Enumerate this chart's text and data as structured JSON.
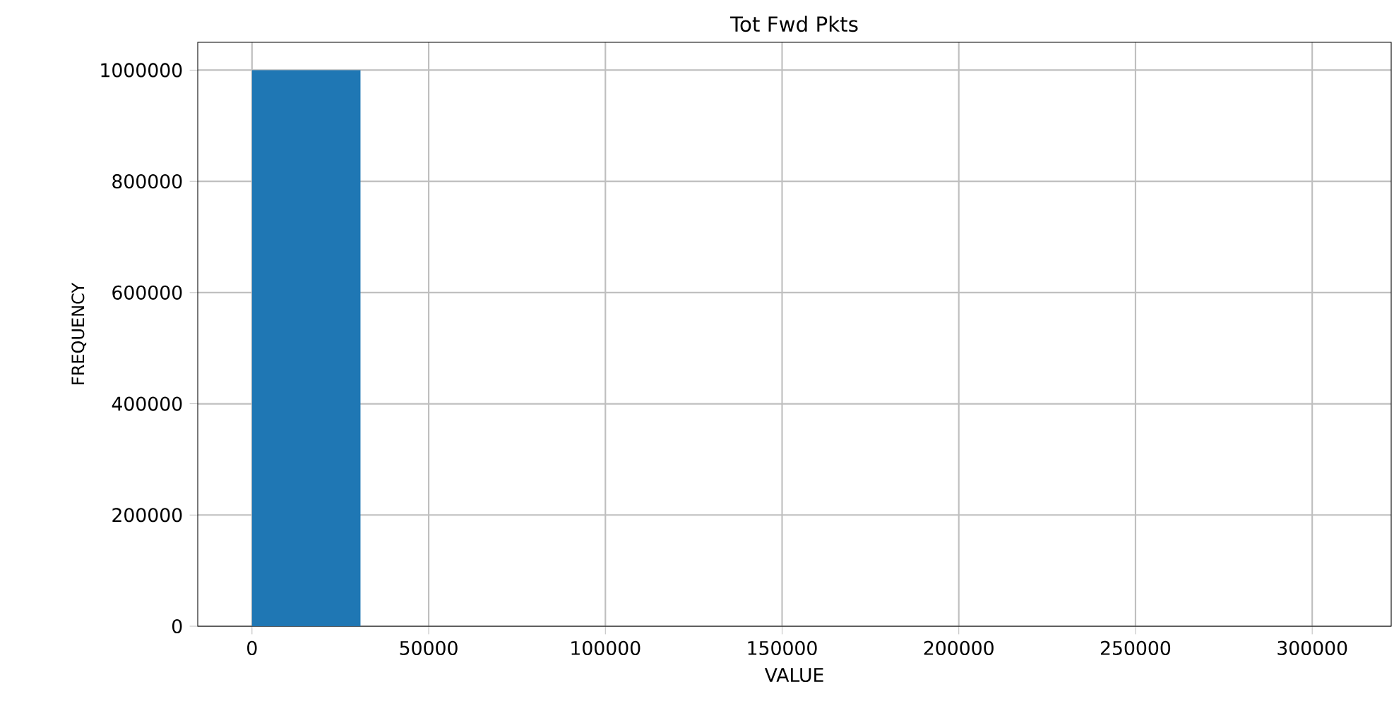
{
  "chart_data": {
    "type": "histogram",
    "title": "Tot Fwd Pkts",
    "xlabel": "VALUE",
    "ylabel": "FREQUENCY",
    "bins": [
      0,
      30700,
      61400,
      92100,
      122800,
      153500,
      184200,
      214900,
      245600,
      276300,
      307000
    ],
    "values": [
      1000000,
      0,
      0,
      0,
      0,
      0,
      0,
      0,
      0,
      0
    ],
    "color": "#1f77b4",
    "xlim": [
      -15350,
      322350
    ],
    "ylim": [
      0,
      1050000
    ],
    "xticks": [
      0,
      50000,
      100000,
      150000,
      200000,
      250000,
      300000
    ],
    "yticks": [
      0,
      200000,
      400000,
      600000,
      800000,
      1000000
    ],
    "grid": true
  }
}
